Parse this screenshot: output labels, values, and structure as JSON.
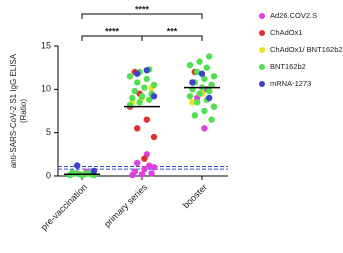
{
  "chart_data": {
    "type": "scatter",
    "y_label": [
      "anti-SARS-CoV-2 S1 IgG ELISA",
      "(Ratio)"
    ],
    "categories": [
      "pre-vaccination",
      "primary series",
      "booster"
    ],
    "ylim": [
      0,
      15
    ],
    "yticks": [
      0,
      5,
      10,
      15
    ],
    "medians": [
      0.2,
      8.0,
      10.2
    ],
    "reference_lines": [
      0.8,
      1.1
    ],
    "significance": [
      {
        "label": "****",
        "between": [
          "pre-vaccination",
          "booster"
        ]
      },
      {
        "label": "****",
        "between": [
          "pre-vaccination",
          "primary series"
        ]
      },
      {
        "label": "***",
        "between": [
          "primary series",
          "booster"
        ]
      }
    ],
    "series": [
      {
        "name": "Ad26.COV2.S",
        "color": "#e040e0",
        "x": [
          "pre-vaccination",
          "pre-vaccination",
          "primary series",
          "primary series",
          "primary series",
          "primary series",
          "primary series",
          "primary series",
          "primary series",
          "primary series",
          "primary series",
          "booster",
          "booster",
          "booster",
          "booster"
        ],
        "values": [
          0.5,
          0.3,
          2.5,
          1.5,
          1.0,
          0.8,
          0.5,
          0.3,
          0.2,
          0.1,
          1.2,
          10.0,
          9.0,
          8.0,
          5.5
        ]
      },
      {
        "name": "ChAdOx1",
        "color": "#e03030",
        "x": [
          "primary series",
          "primary series",
          "primary series",
          "primary series",
          "primary series",
          "primary series",
          "primary series",
          "booster",
          "booster"
        ],
        "values": [
          9.5,
          8.0,
          6.5,
          5.5,
          4.5,
          2.0,
          12.0,
          12.0,
          10.5
        ]
      },
      {
        "name": "ChAdOx1/ BNT162b2",
        "color": "#f0e020",
        "x": [
          "primary series",
          "primary series",
          "primary series",
          "booster",
          "booster"
        ],
        "values": [
          10.2,
          9.0,
          8.5,
          9.5,
          8.5
        ]
      },
      {
        "name": "BNT162b2",
        "color": "#50e050",
        "x": [
          "pre-vaccination",
          "pre-vaccination",
          "pre-vaccination",
          "pre-vaccination",
          "pre-vaccination",
          "pre-vaccination",
          "pre-vaccination",
          "pre-vaccination",
          "pre-vaccination",
          "pre-vaccination",
          "primary series",
          "primary series",
          "primary series",
          "primary series",
          "primary series",
          "primary series",
          "primary series",
          "primary series",
          "primary series",
          "primary series",
          "primary series",
          "primary series",
          "primary series",
          "primary series",
          "booster",
          "booster",
          "booster",
          "booster",
          "booster",
          "booster",
          "booster",
          "booster",
          "booster",
          "booster",
          "booster",
          "booster",
          "booster",
          "booster",
          "booster",
          "booster",
          "booster",
          "booster",
          "booster",
          "booster"
        ],
        "values": [
          0.1,
          0.2,
          0.3,
          0.2,
          0.1,
          0.4,
          0.3,
          0.2,
          0.1,
          0.3,
          12.3,
          12.0,
          11.5,
          11.2,
          10.8,
          10.5,
          10.2,
          9.8,
          9.5,
          9.2,
          9.0,
          8.8,
          8.5,
          8.2,
          13.8,
          13.2,
          12.8,
          12.5,
          12.0,
          11.5,
          11.2,
          10.8,
          10.5,
          10.2,
          10.0,
          9.8,
          9.5,
          9.2,
          8.8,
          8.5,
          8.0,
          7.5,
          7.0,
          6.5
        ]
      },
      {
        "name": "mRNA-1273",
        "color": "#4040d0",
        "x": [
          "pre-vaccination",
          "pre-vaccination",
          "primary series",
          "primary series",
          "primary series",
          "booster",
          "booster",
          "booster"
        ],
        "values": [
          1.2,
          0.6,
          12.2,
          11.8,
          9.2,
          11.8,
          10.8,
          9.0
        ]
      }
    ]
  }
}
